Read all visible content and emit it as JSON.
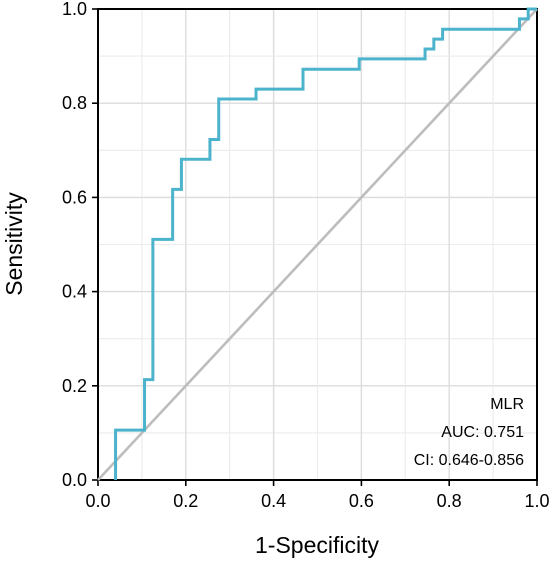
{
  "chart_data": {
    "type": "line",
    "xlabel": "1-Specificity",
    "ylabel": "Sensitivity",
    "xlim": [
      0,
      1
    ],
    "ylim": [
      0,
      1
    ],
    "x_ticks": [
      "0.0",
      "0.2",
      "0.4",
      "0.6",
      "0.8",
      "1.0"
    ],
    "y_ticks": [
      "0.0",
      "0.2",
      "0.4",
      "0.6",
      "0.8",
      "1.0"
    ],
    "grid": true,
    "series": [
      {
        "type": "step",
        "color": "#4bb3cc",
        "points": [
          [
            0.04,
            0.0
          ],
          [
            0.04,
            0.106
          ],
          [
            0.106,
            0.106
          ],
          [
            0.106,
            0.213
          ],
          [
            0.125,
            0.213
          ],
          [
            0.125,
            0.511
          ],
          [
            0.17,
            0.511
          ],
          [
            0.17,
            0.617
          ],
          [
            0.19,
            0.617
          ],
          [
            0.19,
            0.681
          ],
          [
            0.255,
            0.681
          ],
          [
            0.255,
            0.723
          ],
          [
            0.275,
            0.723
          ],
          [
            0.275,
            0.809
          ],
          [
            0.36,
            0.809
          ],
          [
            0.36,
            0.83
          ],
          [
            0.467,
            0.83
          ],
          [
            0.467,
            0.872
          ],
          [
            0.595,
            0.872
          ],
          [
            0.595,
            0.894
          ],
          [
            0.745,
            0.894
          ],
          [
            0.745,
            0.915
          ],
          [
            0.765,
            0.915
          ],
          [
            0.765,
            0.936
          ],
          [
            0.785,
            0.936
          ],
          [
            0.785,
            0.957
          ],
          [
            0.96,
            0.957
          ],
          [
            0.96,
            0.979
          ],
          [
            0.98,
            0.979
          ],
          [
            0.98,
            1.0
          ],
          [
            1.0,
            1.0
          ]
        ]
      },
      {
        "type": "reference",
        "color": "#bdbdbd",
        "points": [
          [
            0,
            0
          ],
          [
            1,
            1
          ]
        ]
      }
    ],
    "annotations": [
      "MLR",
      "AUC: 0.751",
      "CI: 0.646-0.856"
    ]
  }
}
